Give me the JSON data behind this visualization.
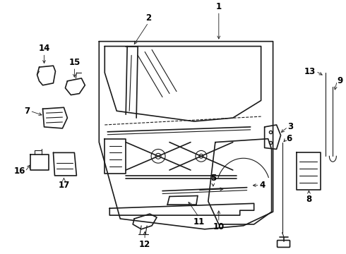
{
  "background_color": "#ffffff",
  "line_color": "#1a1a1a",
  "label_color": "#000000",
  "fig_width": 4.9,
  "fig_height": 3.6,
  "dpi": 100,
  "label_fontsize": 8.5,
  "arrow_lw": 0.6
}
